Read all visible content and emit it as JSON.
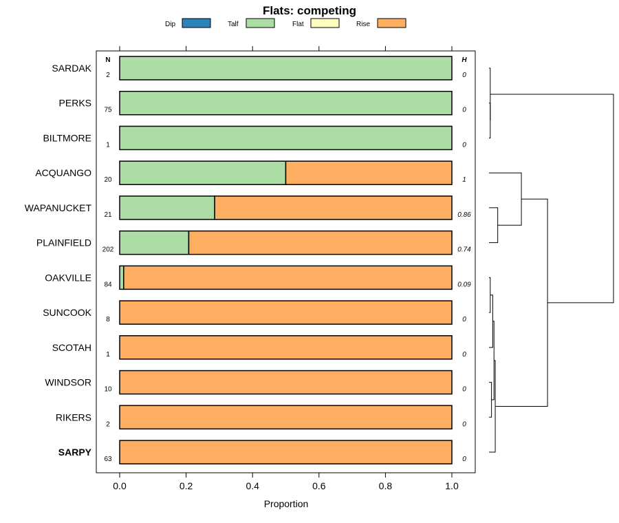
{
  "chart_data": {
    "type": "bar",
    "orientation": "horizontal",
    "stacked": true,
    "title": "Flats: competing",
    "xlabel": "Proportion",
    "xlim": [
      0,
      1
    ],
    "xticks": [
      0.0,
      0.2,
      0.4,
      0.6,
      0.8,
      1.0
    ],
    "xtick_labels": [
      "0.0",
      "0.2",
      "0.4",
      "0.6",
      "0.8",
      "1.0"
    ],
    "n_header": "N",
    "h_header": "H",
    "legend": [
      {
        "name": "Dip",
        "color": "#2b83ba"
      },
      {
        "name": "Talf",
        "color": "#abdda4"
      },
      {
        "name": "Flat",
        "color": "#ffffbf"
      },
      {
        "name": "Rise",
        "color": "#fdae61"
      }
    ],
    "categories": [
      {
        "label": "SARDAK",
        "bold": false,
        "n": "2",
        "h": "0",
        "values": [
          0,
          1.0,
          0,
          0.0
        ]
      },
      {
        "label": "PERKS",
        "bold": false,
        "n": "75",
        "h": "0",
        "values": [
          0,
          1.0,
          0,
          0.0
        ]
      },
      {
        "label": "BILTMORE",
        "bold": false,
        "n": "1",
        "h": "0",
        "values": [
          0,
          1.0,
          0,
          0.0
        ]
      },
      {
        "label": "ACQUANGO",
        "bold": false,
        "n": "20",
        "h": "1",
        "values": [
          0,
          0.5,
          0,
          0.5
        ]
      },
      {
        "label": "WAPANUCKET",
        "bold": false,
        "n": "21",
        "h": "0.86",
        "values": [
          0,
          0.286,
          0,
          0.714
        ]
      },
      {
        "label": "PLAINFIELD",
        "bold": false,
        "n": "202",
        "h": "0.74",
        "values": [
          0,
          0.208,
          0,
          0.792
        ]
      },
      {
        "label": "OAKVILLE",
        "bold": false,
        "n": "84",
        "h": "0.09",
        "values": [
          0,
          0.012,
          0,
          0.988
        ]
      },
      {
        "label": "SUNCOOK",
        "bold": false,
        "n": "8",
        "h": "0",
        "values": [
          0,
          0.0,
          0,
          1.0
        ]
      },
      {
        "label": "SCOTAH",
        "bold": false,
        "n": "1",
        "h": "0",
        "values": [
          0,
          0.0,
          0,
          1.0
        ]
      },
      {
        "label": "WINDSOR",
        "bold": false,
        "n": "10",
        "h": "0",
        "values": [
          0,
          0.0,
          0,
          1.0
        ]
      },
      {
        "label": "RIKERS",
        "bold": false,
        "n": "2",
        "h": "0",
        "values": [
          0,
          0.0,
          0,
          1.0
        ]
      },
      {
        "label": "SARPY",
        "bold": true,
        "n": "63",
        "h": "0",
        "values": [
          0,
          0.0,
          0,
          1.0
        ]
      }
    ],
    "dendrogram": {
      "leaf_order": [
        "SARDAK",
        "PERKS",
        "BILTMORE",
        "ACQUANGO",
        "WAPANUCKET",
        "PLAINFIELD",
        "OAKVILLE",
        "SUNCOOK",
        "SCOTAH",
        "WINDSOR",
        "RIKERS",
        "SARPY"
      ],
      "merges": [
        {
          "a": 1,
          "b": 2,
          "height": 0.01
        },
        {
          "a": 0,
          "b": 12,
          "height": 0.01
        },
        {
          "a": 4,
          "b": 5,
          "height": 0.07
        },
        {
          "a": 3,
          "b": 14,
          "height": 0.26
        },
        {
          "a": 6,
          "b": 7,
          "height": 0.01
        },
        {
          "a": 8,
          "b": 16,
          "height": 0.03
        },
        {
          "a": 9,
          "b": 10,
          "height": 0.02
        },
        {
          "a": 17,
          "b": 18,
          "height": 0.04
        },
        {
          "a": 11,
          "b": 19,
          "height": 0.05
        },
        {
          "a": 15,
          "b": 20,
          "height": 0.47
        },
        {
          "a": 13,
          "b": 21,
          "height": 1.0
        }
      ]
    }
  }
}
